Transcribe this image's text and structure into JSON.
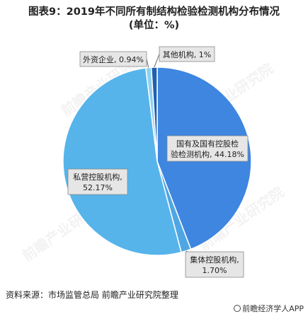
{
  "title": {
    "line1": "图表9：2019年不同所有制结构检验检测机构分布情况",
    "line2": "(单位：%)"
  },
  "source": "资料来源：市场监管总局 前瞻产业研究院整理",
  "brand": "前瞻经济学人APP",
  "watermark": "前瞻产业研究院",
  "colors": {
    "state_owned": "#3e86e0",
    "collective": "#4fa6e3",
    "private": "#56b4ea",
    "foreign": "#8fd0f0",
    "other": "#1f5fb0",
    "label_bg": "#e6e6e6",
    "label_border": "#8a8a8a"
  },
  "chart_data": {
    "type": "pie",
    "start": "12 o'clock",
    "direction": "clockwise",
    "slices": [
      {
        "key": "state_owned",
        "name_lines": [
          "国有及国有控股检",
          "验检测机构, 44.18%"
        ],
        "value": 44.18
      },
      {
        "key": "collective",
        "name_lines": [
          "集体控股机构,",
          "1.70%"
        ],
        "value": 1.7
      },
      {
        "key": "private",
        "name_lines": [
          "私营控股机构,",
          "52.17%"
        ],
        "value": 52.17
      },
      {
        "key": "foreign",
        "name_lines": [
          "外资企业, 0.94%"
        ],
        "value": 0.94
      },
      {
        "key": "other",
        "name_lines": [
          "其他机构, 1%"
        ],
        "value": 1
      }
    ]
  }
}
